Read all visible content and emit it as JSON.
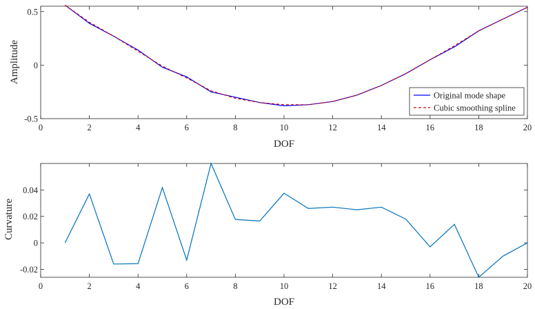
{
  "chart_data": [
    {
      "type": "line",
      "xlabel": "DOF",
      "ylabel": "Amplitude",
      "xlim": [
        0,
        20
      ],
      "ylim": [
        -0.5,
        0.55
      ],
      "xticks": [
        0,
        2,
        4,
        6,
        8,
        10,
        12,
        14,
        16,
        18,
        20
      ],
      "yticks": [
        -0.5,
        0,
        0.5
      ],
      "ytick_labels": [
        "-0.5",
        "0",
        "0.5"
      ],
      "legend_position": "bottom-right",
      "series": [
        {
          "name": "Original mode shape",
          "color": "#0000ff",
          "style": "solid",
          "x": [
            1,
            2,
            3,
            4,
            5,
            6,
            7,
            8,
            9,
            10,
            11,
            12,
            13,
            14,
            15,
            16,
            17,
            18,
            19,
            20
          ],
          "y": [
            0.56,
            0.39,
            0.27,
            0.14,
            -0.02,
            -0.11,
            -0.25,
            -0.3,
            -0.35,
            -0.38,
            -0.37,
            -0.34,
            -0.28,
            -0.19,
            -0.08,
            0.05,
            0.17,
            0.32,
            0.43,
            0.54
          ]
        },
        {
          "name": "Cubic smoothing spline",
          "color": "#cc0000",
          "style": "dashed",
          "x": [
            1,
            2,
            3,
            4,
            5,
            6,
            7,
            8,
            9,
            10,
            11,
            12,
            13,
            14,
            15,
            16,
            17,
            18,
            19,
            20
          ],
          "y": [
            0.56,
            0.4,
            0.27,
            0.13,
            -0.01,
            -0.12,
            -0.24,
            -0.31,
            -0.35,
            -0.37,
            -0.37,
            -0.34,
            -0.28,
            -0.19,
            -0.08,
            0.05,
            0.18,
            0.32,
            0.43,
            0.54
          ]
        }
      ]
    },
    {
      "type": "line",
      "xlabel": "DOF",
      "ylabel": "Curvature",
      "xlim": [
        0,
        20
      ],
      "ylim": [
        -0.026,
        0.06
      ],
      "xticks": [
        0,
        2,
        4,
        6,
        8,
        10,
        12,
        14,
        16,
        18,
        20
      ],
      "yticks": [
        -0.02,
        0,
        0.02,
        0.04
      ],
      "ytick_labels": [
        "-0.02",
        "0",
        "0.02",
        "0.04"
      ],
      "series": [
        {
          "color": "#0072bd",
          "style": "solid",
          "x": [
            1,
            2,
            3,
            4,
            5,
            6,
            7,
            8,
            9,
            10,
            11,
            12,
            13,
            14,
            15,
            16,
            17,
            18,
            19,
            20
          ],
          "y": [
            0.0,
            0.037,
            -0.016,
            -0.0157,
            0.0418,
            -0.013,
            0.06,
            0.0177,
            0.0165,
            0.0375,
            0.026,
            0.027,
            0.025,
            0.027,
            0.018,
            -0.003,
            0.014,
            -0.026,
            -0.01,
            0.0
          ]
        }
      ]
    }
  ]
}
